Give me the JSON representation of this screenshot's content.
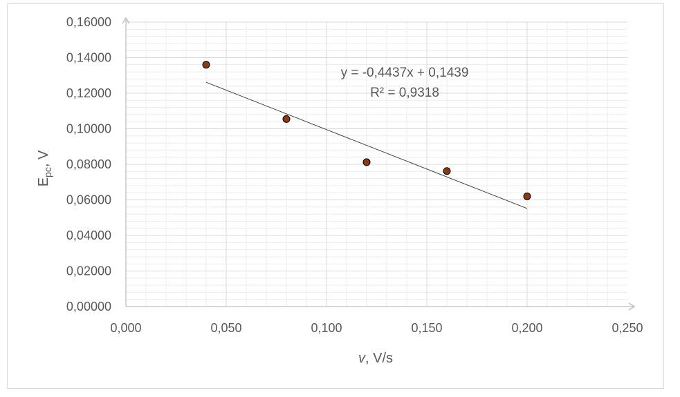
{
  "chart_data": {
    "type": "scatter",
    "x": [
      0.04,
      0.08,
      0.12,
      0.16,
      0.2
    ],
    "y": [
      0.136,
      0.1055,
      0.0812,
      0.0762,
      0.062
    ],
    "xlim": [
      0,
      0.25
    ],
    "ylim": [
      0,
      0.16
    ],
    "x_major_step": 0.05,
    "y_major_step": 0.02,
    "x_minor_step": 0.01,
    "y_minor_step": 0.004,
    "x_ticks": [
      "0,000",
      "0,050",
      "0,100",
      "0,150",
      "0,200",
      "0,250"
    ],
    "y_ticks": [
      "0,00000",
      "0,02000",
      "0,04000",
      "0,06000",
      "0,08000",
      "0,10000",
      "0,12000",
      "0,14000",
      "0,16000"
    ],
    "xlabel": {
      "italic_part": "v",
      "rest": ", V/s"
    },
    "ylabel": {
      "base": "E",
      "subscript": "pc",
      "rest": ", V"
    },
    "trendline": {
      "type": "linear",
      "slope": -0.4437,
      "intercept": 0.1439,
      "x_range": [
        0.04,
        0.2
      ],
      "equation": "y = -0,4437x + 0,1439",
      "r2": "R² = 0,9318"
    },
    "grid": {
      "major": true,
      "minor": true
    },
    "colors": {
      "marker_fill": "#8B3A12",
      "marker_edge": "#000000",
      "trendline": "#404040",
      "major_grid": "#d9d9d9",
      "minor_grid": "#ececec",
      "axis": "#bfbfbf",
      "text": "#595959"
    }
  }
}
